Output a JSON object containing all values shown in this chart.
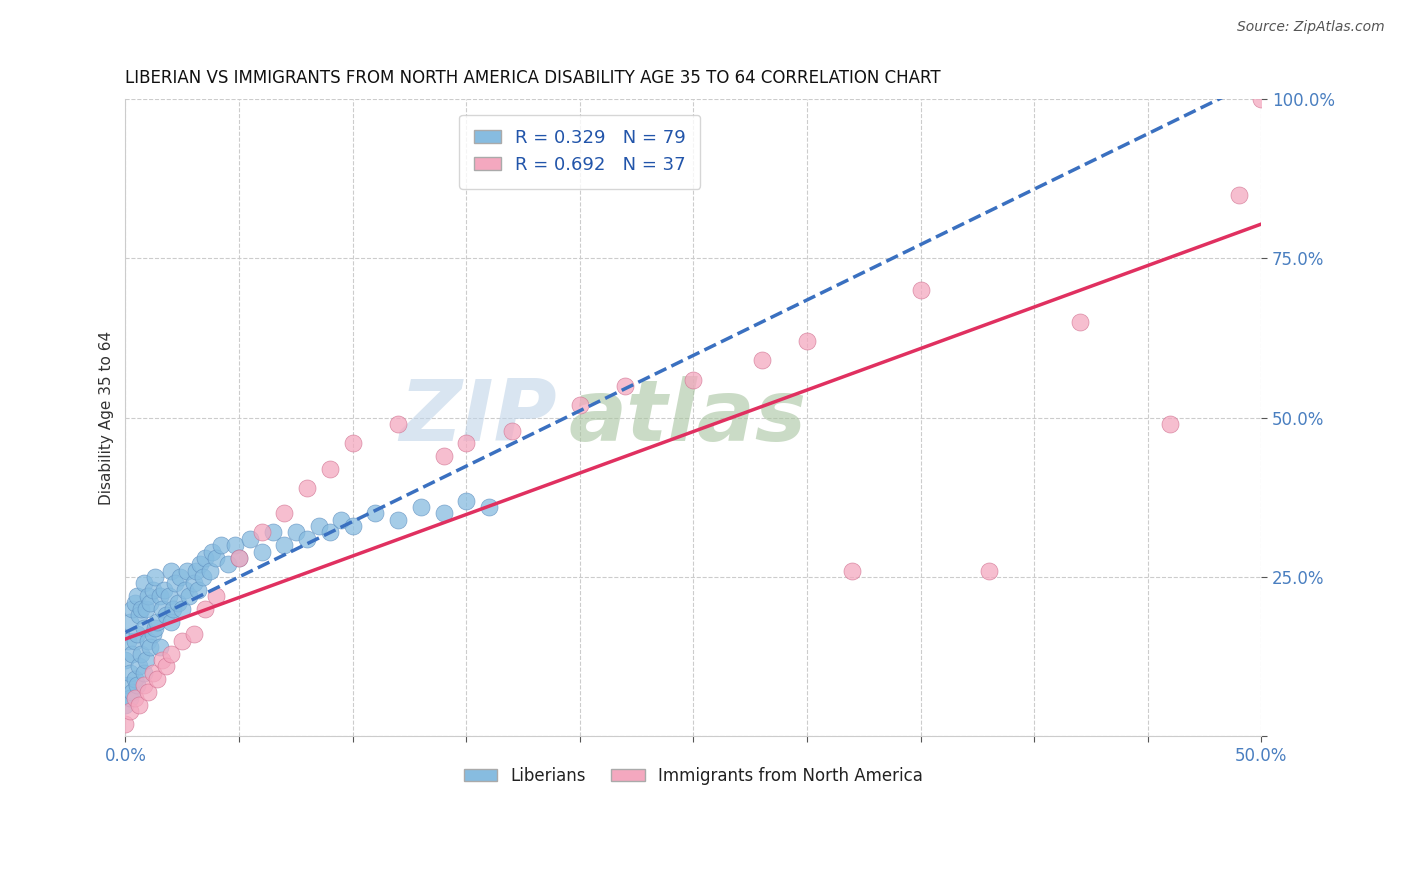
{
  "title": "LIBERIAN VS IMMIGRANTS FROM NORTH AMERICA DISABILITY AGE 35 TO 64 CORRELATION CHART",
  "source": "Source: ZipAtlas.com",
  "ylabel": "Disability Age 35 to 64",
  "xlim": [
    0.0,
    0.5
  ],
  "ylim": [
    0.0,
    1.0
  ],
  "liberian_color": "#87bce0",
  "liberian_edge": "#6090c0",
  "immigrant_color": "#f4a8bf",
  "immigrant_edge": "#d07090",
  "liberian_trend_color": "#3a70c0",
  "immigrant_trend_color": "#e03060",
  "liberian_R": 0.329,
  "liberian_N": 79,
  "immigrant_R": 0.692,
  "immigrant_N": 37,
  "background_color": "#ffffff",
  "lib_x": [
    0.0,
    0.0,
    0.001,
    0.001,
    0.002,
    0.002,
    0.002,
    0.003,
    0.003,
    0.003,
    0.004,
    0.004,
    0.004,
    0.005,
    0.005,
    0.005,
    0.006,
    0.006,
    0.007,
    0.007,
    0.008,
    0.008,
    0.008,
    0.009,
    0.009,
    0.01,
    0.01,
    0.011,
    0.011,
    0.012,
    0.012,
    0.013,
    0.013,
    0.014,
    0.015,
    0.015,
    0.016,
    0.017,
    0.018,
    0.019,
    0.02,
    0.02,
    0.021,
    0.022,
    0.023,
    0.024,
    0.025,
    0.026,
    0.027,
    0.028,
    0.03,
    0.031,
    0.032,
    0.033,
    0.034,
    0.035,
    0.037,
    0.038,
    0.04,
    0.042,
    0.045,
    0.048,
    0.05,
    0.055,
    0.06,
    0.065,
    0.07,
    0.075,
    0.08,
    0.085,
    0.09,
    0.095,
    0.1,
    0.11,
    0.12,
    0.13,
    0.14,
    0.15,
    0.16
  ],
  "lib_y": [
    0.05,
    0.12,
    0.08,
    0.15,
    0.06,
    0.1,
    0.18,
    0.07,
    0.13,
    0.2,
    0.09,
    0.15,
    0.21,
    0.08,
    0.16,
    0.22,
    0.11,
    0.19,
    0.13,
    0.2,
    0.1,
    0.17,
    0.24,
    0.12,
    0.2,
    0.15,
    0.22,
    0.14,
    0.21,
    0.16,
    0.23,
    0.17,
    0.25,
    0.18,
    0.14,
    0.22,
    0.2,
    0.23,
    0.19,
    0.22,
    0.18,
    0.26,
    0.2,
    0.24,
    0.21,
    0.25,
    0.2,
    0.23,
    0.26,
    0.22,
    0.24,
    0.26,
    0.23,
    0.27,
    0.25,
    0.28,
    0.26,
    0.29,
    0.28,
    0.3,
    0.27,
    0.3,
    0.28,
    0.31,
    0.29,
    0.32,
    0.3,
    0.32,
    0.31,
    0.33,
    0.32,
    0.34,
    0.33,
    0.35,
    0.34,
    0.36,
    0.35,
    0.37,
    0.36
  ],
  "imm_x": [
    0.0,
    0.002,
    0.004,
    0.006,
    0.008,
    0.01,
    0.012,
    0.014,
    0.016,
    0.018,
    0.02,
    0.025,
    0.03,
    0.035,
    0.04,
    0.05,
    0.06,
    0.07,
    0.08,
    0.09,
    0.1,
    0.12,
    0.14,
    0.15,
    0.17,
    0.2,
    0.22,
    0.25,
    0.28,
    0.3,
    0.32,
    0.35,
    0.38,
    0.42,
    0.46,
    0.49,
    0.5
  ],
  "imm_y": [
    0.02,
    0.04,
    0.06,
    0.05,
    0.08,
    0.07,
    0.1,
    0.09,
    0.12,
    0.11,
    0.13,
    0.15,
    0.16,
    0.2,
    0.22,
    0.28,
    0.32,
    0.35,
    0.39,
    0.42,
    0.46,
    0.49,
    0.44,
    0.46,
    0.48,
    0.52,
    0.55,
    0.56,
    0.59,
    0.62,
    0.26,
    0.7,
    0.26,
    0.65,
    0.49,
    0.85,
    1.0
  ]
}
